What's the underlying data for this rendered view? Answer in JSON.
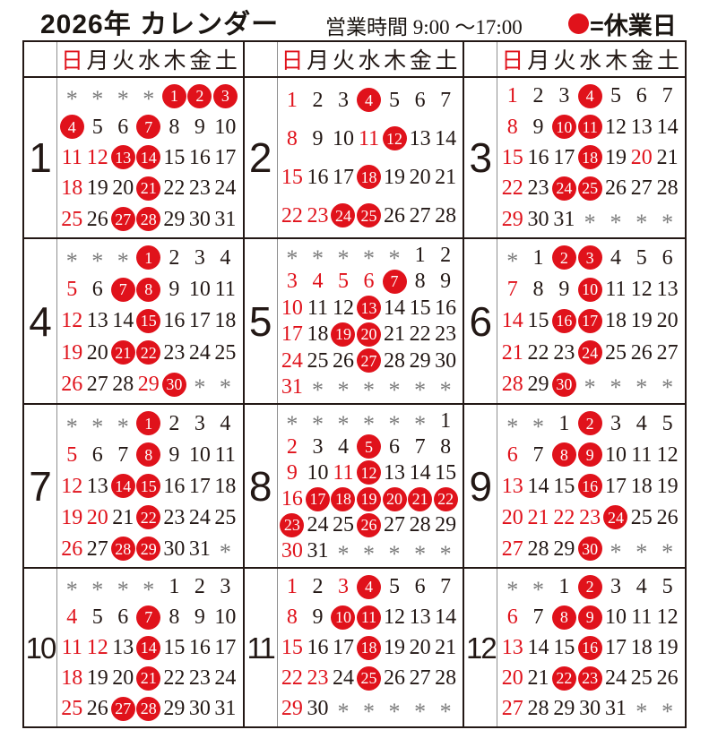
{
  "page": {
    "title": "2026年 カレンダー",
    "business_hours": "営業時間 9:00 ～17:00",
    "legend": {
      "symbol": "●",
      "label": "=休業日"
    },
    "colors": {
      "red": "#e0121b",
      "ink": "#231815",
      "muted": "#7b7b7b"
    }
  },
  "weekdays": [
    "日",
    "月",
    "火",
    "水",
    "木",
    "金",
    "土"
  ],
  "empty_cell_symbol": "*",
  "months": [
    {
      "label": "1",
      "first_weekday": 4,
      "num_days": 31,
      "closed": [
        1,
        2,
        3,
        4,
        7,
        13,
        14,
        21,
        27,
        28
      ],
      "red_days": [
        11,
        12,
        18,
        25
      ]
    },
    {
      "label": "2",
      "first_weekday": 0,
      "num_days": 28,
      "closed": [
        4,
        12,
        18,
        24,
        25
      ],
      "red_days": [
        1,
        8,
        11,
        15,
        22,
        23
      ]
    },
    {
      "label": "3",
      "first_weekday": 0,
      "num_days": 31,
      "closed": [
        4,
        10,
        11,
        18,
        24,
        25
      ],
      "red_days": [
        1,
        8,
        15,
        20,
        22,
        29
      ]
    },
    {
      "label": "4",
      "first_weekday": 3,
      "num_days": 30,
      "closed": [
        1,
        7,
        8,
        15,
        21,
        22,
        30
      ],
      "red_days": [
        5,
        12,
        19,
        26,
        29
      ]
    },
    {
      "label": "5",
      "first_weekday": 5,
      "num_days": 31,
      "closed": [
        7,
        13,
        19,
        20,
        27
      ],
      "red_days": [
        3,
        4,
        5,
        6,
        10,
        17,
        24,
        31
      ]
    },
    {
      "label": "6",
      "first_weekday": 1,
      "num_days": 30,
      "closed": [
        2,
        3,
        10,
        16,
        17,
        24,
        30
      ],
      "red_days": [
        7,
        14,
        21,
        28
      ]
    },
    {
      "label": "7",
      "first_weekday": 3,
      "num_days": 31,
      "closed": [
        1,
        8,
        14,
        15,
        22,
        28,
        29
      ],
      "red_days": [
        5,
        12,
        19,
        20,
        26
      ]
    },
    {
      "label": "8",
      "first_weekday": 6,
      "num_days": 31,
      "closed": [
        5,
        12,
        17,
        18,
        19,
        20,
        21,
        22,
        23,
        26
      ],
      "red_days": [
        2,
        9,
        11,
        16,
        30
      ]
    },
    {
      "label": "9",
      "first_weekday": 2,
      "num_days": 30,
      "closed": [
        2,
        8,
        9,
        16,
        24,
        30
      ],
      "red_days": [
        6,
        13,
        20,
        21,
        22,
        23,
        27
      ]
    },
    {
      "label": "10",
      "first_weekday": 4,
      "num_days": 31,
      "closed": [
        7,
        14,
        21,
        27,
        28
      ],
      "red_days": [
        4,
        11,
        12,
        18,
        25
      ]
    },
    {
      "label": "11",
      "first_weekday": 0,
      "num_days": 30,
      "closed": [
        4,
        10,
        11,
        18,
        25
      ],
      "red_days": [
        1,
        3,
        8,
        15,
        22,
        23,
        29
      ]
    },
    {
      "label": "12",
      "first_weekday": 2,
      "num_days": 31,
      "closed": [
        2,
        8,
        9,
        16,
        22,
        23
      ],
      "red_days": [
        6,
        13,
        20,
        27
      ]
    }
  ]
}
